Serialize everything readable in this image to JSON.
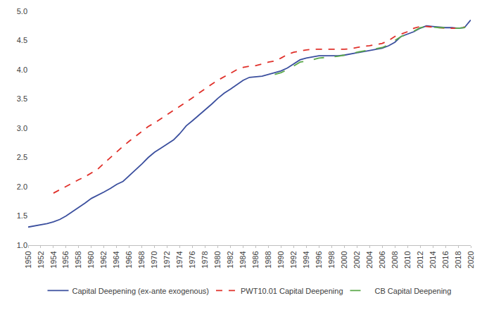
{
  "chart_data": {
    "type": "line",
    "x": [
      1950,
      1951,
      1952,
      1953,
      1954,
      1955,
      1956,
      1957,
      1958,
      1959,
      1960,
      1961,
      1962,
      1963,
      1964,
      1965,
      1966,
      1967,
      1968,
      1969,
      1970,
      1971,
      1972,
      1973,
      1974,
      1975,
      1976,
      1977,
      1978,
      1979,
      1980,
      1981,
      1982,
      1983,
      1984,
      1985,
      1986,
      1987,
      1988,
      1989,
      1990,
      1991,
      1992,
      1993,
      1994,
      1995,
      1996,
      1997,
      1998,
      1999,
      2000,
      2001,
      2002,
      2003,
      2004,
      2005,
      2006,
      2007,
      2008,
      2009,
      2010,
      2011,
      2012,
      2013,
      2014,
      2015,
      2016,
      2017,
      2018,
      2019,
      2020
    ],
    "series": [
      {
        "name": "Capital Deepening (ex-ante exogenous)",
        "color": "#3b4f9e",
        "line_style": "solid",
        "values": [
          1.31,
          1.33,
          1.35,
          1.37,
          1.4,
          1.44,
          1.5,
          1.57,
          1.64,
          1.72,
          1.8,
          1.85,
          1.91,
          1.97,
          2.04,
          2.09,
          2.19,
          2.28,
          2.39,
          2.5,
          2.59,
          2.66,
          2.73,
          2.8,
          2.91,
          3.04,
          3.13,
          3.22,
          3.32,
          3.41,
          3.51,
          3.6,
          3.67,
          3.74,
          3.82,
          3.87,
          3.88,
          3.89,
          3.92,
          3.95,
          3.98,
          4.03,
          4.1,
          4.17,
          4.2,
          4.22,
          4.24,
          4.24,
          4.24,
          4.24,
          4.25,
          4.27,
          4.29,
          4.31,
          4.33,
          4.35,
          4.37,
          4.41,
          4.47,
          4.57,
          4.61,
          4.65,
          4.71,
          4.75,
          4.74,
          4.73,
          4.72,
          4.72,
          4.71,
          4.72,
          4.85
        ]
      },
      {
        "name": "PWT10.01 Capital Deepening",
        "color": "#e0302a",
        "line_style": "dash",
        "values": [
          null,
          null,
          null,
          null,
          1.89,
          1.95,
          2.01,
          2.07,
          2.12,
          2.17,
          2.23,
          2.3,
          2.4,
          2.5,
          2.6,
          2.69,
          2.78,
          2.86,
          2.95,
          3.03,
          3.09,
          3.16,
          3.23,
          3.3,
          3.38,
          3.45,
          3.52,
          3.6,
          3.68,
          3.75,
          3.82,
          3.88,
          3.94,
          4.0,
          4.04,
          4.06,
          4.07,
          4.1,
          4.13,
          4.15,
          4.2,
          4.26,
          4.3,
          4.32,
          4.34,
          4.35,
          4.35,
          4.35,
          4.35,
          4.35,
          4.35,
          4.36,
          4.38,
          4.4,
          4.41,
          4.43,
          4.45,
          4.5,
          4.57,
          4.61,
          4.65,
          4.71,
          4.74,
          4.74,
          4.73,
          4.72,
          4.71,
          4.71,
          4.71,
          4.73,
          null
        ]
      },
      {
        "name": "CB Capital Deepening",
        "color": "#5aa84a",
        "line_style": "longdash",
        "values": [
          null,
          null,
          null,
          null,
          null,
          null,
          null,
          null,
          null,
          null,
          null,
          null,
          null,
          null,
          null,
          null,
          null,
          null,
          null,
          null,
          null,
          null,
          null,
          null,
          null,
          null,
          null,
          null,
          null,
          null,
          null,
          null,
          null,
          null,
          null,
          null,
          null,
          null,
          null,
          3.92,
          3.95,
          4.0,
          4.07,
          4.13,
          4.15,
          4.17,
          4.2,
          4.21,
          4.22,
          4.23,
          4.25,
          4.27,
          4.3,
          4.32,
          4.34,
          4.36,
          4.38,
          4.43,
          4.5,
          4.57,
          4.61,
          4.66,
          4.72,
          4.74,
          4.73,
          4.72,
          4.72,
          4.71,
          4.71,
          4.72,
          4.86
        ]
      }
    ],
    "xlim": [
      1950,
      2020
    ],
    "xticks": [
      1950,
      1952,
      1954,
      1956,
      1958,
      1960,
      1962,
      1964,
      1966,
      1968,
      1970,
      1972,
      1974,
      1976,
      1978,
      1980,
      1982,
      1984,
      1986,
      1988,
      1990,
      1992,
      1994,
      1996,
      1998,
      2000,
      2002,
      2004,
      2006,
      2008,
      2010,
      2012,
      2014,
      2016,
      2018,
      2020
    ],
    "ylim": [
      1,
      5
    ],
    "yticks": [
      {
        "value": 1,
        "label": "1.0"
      },
      1.5,
      {
        "value": 2,
        "label": "2.0"
      },
      2.5,
      {
        "value": 3,
        "label": "3.0"
      },
      3.5,
      {
        "value": 4,
        "label": "4.0"
      },
      4.5,
      {
        "value": 5,
        "label": "5.0"
      }
    ],
    "grid": false,
    "legend": "bottom"
  }
}
